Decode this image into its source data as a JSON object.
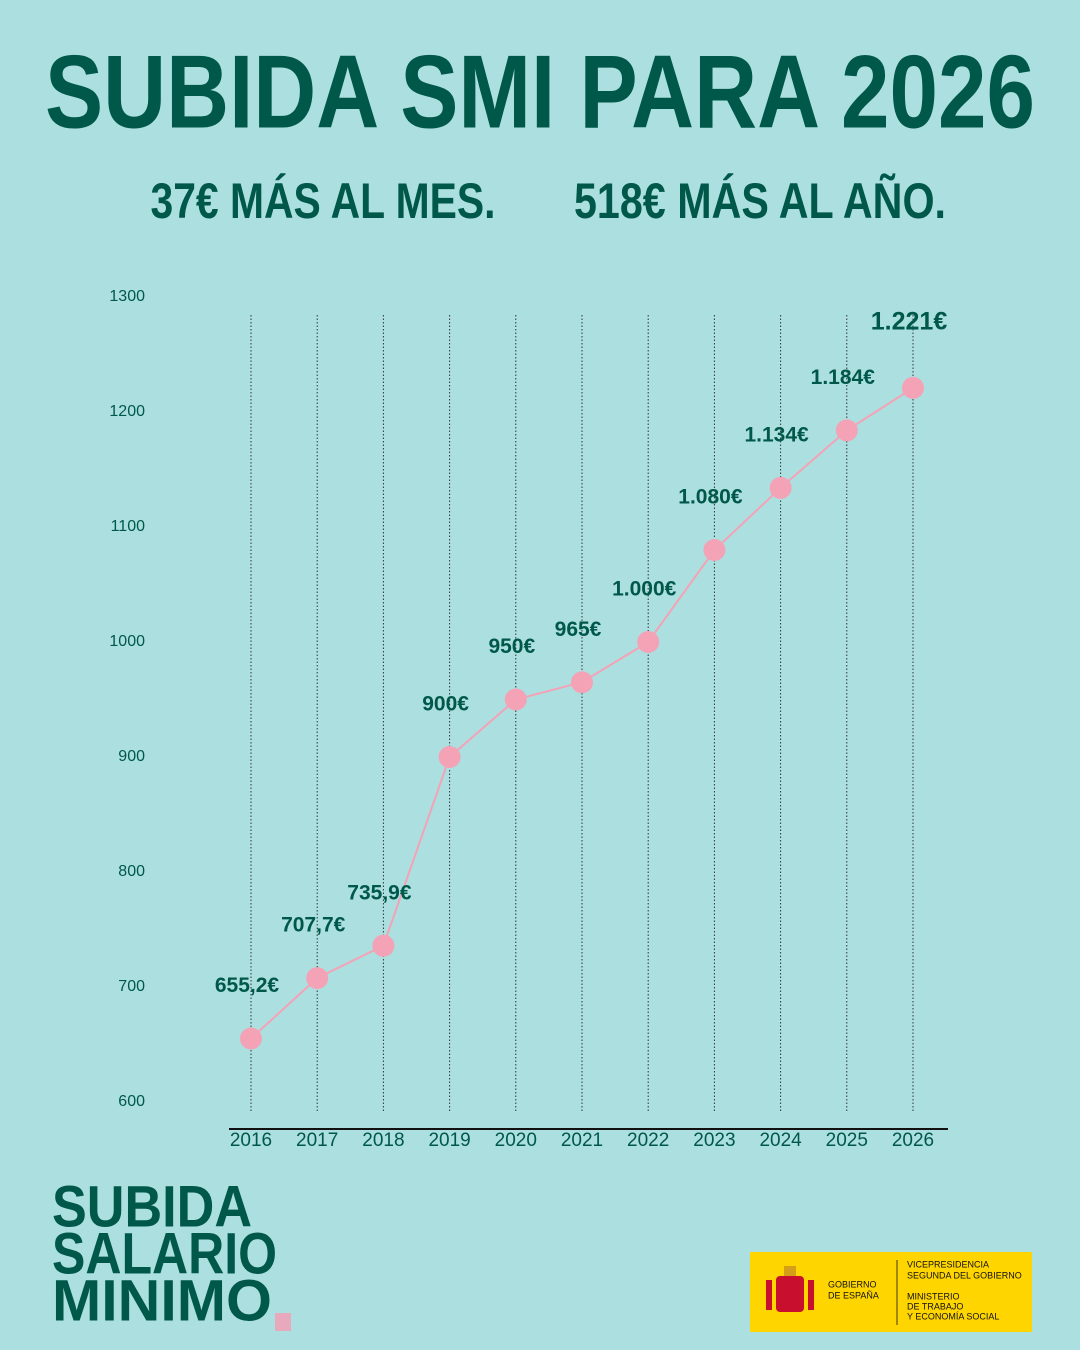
{
  "chart_data": {
    "type": "line",
    "title": "SUBIDA SMI PARA 2026",
    "subtitle": [
      "37€ MÁS AL MES.",
      "518€ MÁS AL AÑO."
    ],
    "categories": [
      "2016",
      "2017",
      "2018",
      "2019",
      "2020",
      "2021",
      "2022",
      "2023",
      "2024",
      "2025",
      "2026"
    ],
    "series": [
      {
        "color": "#f4a3b6",
        "values": [
          655.2,
          707.7,
          735.9,
          900,
          950,
          965,
          1000,
          1080,
          1134,
          1184,
          1221
        ],
        "value_labels": [
          "655,2€",
          "707,7€",
          "735,9€",
          "900€",
          "950€",
          "965€",
          "1.000€",
          "1.080€",
          "1.134€",
          "1.184€",
          "1.221€"
        ]
      }
    ],
    "ylim": [
      600,
      1300
    ],
    "yticks": [
      600,
      700,
      800,
      900,
      1000,
      1100,
      1200,
      1300
    ],
    "grid": true
  },
  "logo": {
    "lines": [
      "SUBIDA",
      "SALARIO",
      "MINIMO"
    ]
  },
  "footer": {
    "government": [
      "GOBIERNO",
      "DE ESPAÑA"
    ],
    "vicepresidency": [
      "VICEPRESIDENCIA",
      "SEGUNDA DEL GOBIERNO"
    ],
    "ministry": [
      "MINISTERIO",
      "DE TRABAJO",
      "Y ECONOMÍA SOCIAL"
    ]
  }
}
